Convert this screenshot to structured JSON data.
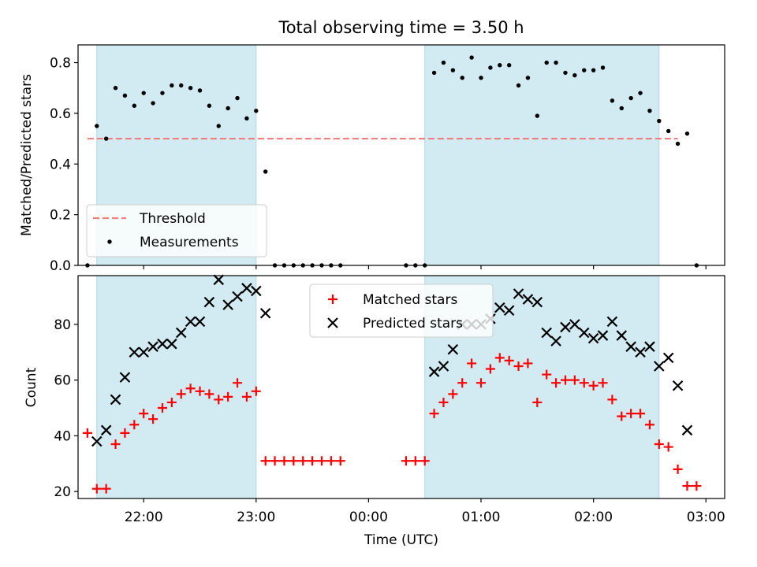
{
  "title": "Total observing time = 3.50 h",
  "colors": {
    "shade": "#add8e6",
    "threshold": "#f08080",
    "measurement": "#000000",
    "matched": "#ff0000",
    "predicted": "#000000"
  },
  "chart_data": [
    {
      "type": "scatter",
      "panel": "top",
      "ylabel": "Matched/Predicted stars",
      "xlabel": "",
      "ylim": [
        0,
        0.87
      ],
      "yticks": [
        "0.0",
        "0.2",
        "0.4",
        "0.6",
        "0.8"
      ],
      "grid": false,
      "legend_position": "lower left",
      "shaded_intervals": [
        [
          "21:35",
          "23:00"
        ],
        [
          "00:30",
          "02:35"
        ]
      ],
      "threshold": {
        "name": "Threshold",
        "value": 0.5,
        "x_start": "21:30",
        "x_end": "02:45"
      },
      "series": [
        {
          "name": "Measurements",
          "points": [
            [
              "21:30",
              0.0
            ],
            [
              "21:35",
              0.55
            ],
            [
              "21:40",
              0.5
            ],
            [
              "21:45",
              0.7
            ],
            [
              "21:50",
              0.67
            ],
            [
              "21:55",
              0.63
            ],
            [
              "22:00",
              0.68
            ],
            [
              "22:05",
              0.64
            ],
            [
              "22:10",
              0.68
            ],
            [
              "22:15",
              0.71
            ],
            [
              "22:20",
              0.71
            ],
            [
              "22:25",
              0.7
            ],
            [
              "22:30",
              0.69
            ],
            [
              "22:35",
              0.63
            ],
            [
              "22:40",
              0.55
            ],
            [
              "22:45",
              0.62
            ],
            [
              "22:50",
              0.66
            ],
            [
              "22:55",
              0.58
            ],
            [
              "23:00",
              0.61
            ],
            [
              "23:05",
              0.37
            ],
            [
              "23:10",
              0.0
            ],
            [
              "23:15",
              0.0
            ],
            [
              "23:20",
              0.0
            ],
            [
              "23:25",
              0.0
            ],
            [
              "23:30",
              0.0
            ],
            [
              "23:35",
              0.0
            ],
            [
              "23:40",
              0.0
            ],
            [
              "23:45",
              0.0
            ],
            [
              "00:20",
              0.0
            ],
            [
              "00:25",
              0.0
            ],
            [
              "00:30",
              0.0
            ],
            [
              "00:35",
              0.76
            ],
            [
              "00:40",
              0.8
            ],
            [
              "00:45",
              0.77
            ],
            [
              "00:50",
              0.74
            ],
            [
              "00:55",
              0.82
            ],
            [
              "01:00",
              0.74
            ],
            [
              "01:05",
              0.78
            ],
            [
              "01:10",
              0.79
            ],
            [
              "01:15",
              0.79
            ],
            [
              "01:20",
              0.71
            ],
            [
              "01:25",
              0.74
            ],
            [
              "01:30",
              0.59
            ],
            [
              "01:35",
              0.8
            ],
            [
              "01:40",
              0.8
            ],
            [
              "01:45",
              0.76
            ],
            [
              "01:50",
              0.75
            ],
            [
              "01:55",
              0.77
            ],
            [
              "02:00",
              0.77
            ],
            [
              "02:05",
              0.78
            ],
            [
              "02:10",
              0.65
            ],
            [
              "02:15",
              0.62
            ],
            [
              "02:20",
              0.66
            ],
            [
              "02:25",
              0.68
            ],
            [
              "02:30",
              0.61
            ],
            [
              "02:35",
              0.57
            ],
            [
              "02:40",
              0.53
            ],
            [
              "02:45",
              0.48
            ],
            [
              "02:50",
              0.52
            ],
            [
              "02:55",
              0.0
            ]
          ]
        }
      ]
    },
    {
      "type": "scatter",
      "panel": "bottom",
      "xlabel": "Time (UTC)",
      "ylabel": "Count",
      "ylim": [
        17.5,
        97.5
      ],
      "yticks": [
        "20",
        "40",
        "60",
        "80"
      ],
      "xlim": [
        "21:25",
        "03:10"
      ],
      "xticks": [
        "22:00",
        "23:00",
        "00:00",
        "01:00",
        "02:00",
        "03:00"
      ],
      "grid": false,
      "legend_position": "upper center",
      "shaded_intervals": [
        [
          "21:35",
          "23:00"
        ],
        [
          "00:30",
          "02:35"
        ]
      ],
      "series": [
        {
          "name": "Matched stars",
          "marker": "+",
          "points": [
            [
              "21:30",
              41
            ],
            [
              "21:35",
              21
            ],
            [
              "21:40",
              21
            ],
            [
              "21:45",
              37
            ],
            [
              "21:50",
              41
            ],
            [
              "21:55",
              44
            ],
            [
              "22:00",
              48
            ],
            [
              "22:05",
              46
            ],
            [
              "22:10",
              50
            ],
            [
              "22:15",
              52
            ],
            [
              "22:20",
              55
            ],
            [
              "22:25",
              57
            ],
            [
              "22:30",
              56
            ],
            [
              "22:35",
              55
            ],
            [
              "22:40",
              53
            ],
            [
              "22:45",
              54
            ],
            [
              "22:50",
              59
            ],
            [
              "22:55",
              54
            ],
            [
              "23:00",
              56
            ],
            [
              "23:05",
              31
            ],
            [
              "23:10",
              31
            ],
            [
              "23:15",
              31
            ],
            [
              "23:20",
              31
            ],
            [
              "23:25",
              31
            ],
            [
              "23:30",
              31
            ],
            [
              "23:35",
              31
            ],
            [
              "23:40",
              31
            ],
            [
              "23:45",
              31
            ],
            [
              "00:20",
              31
            ],
            [
              "00:25",
              31
            ],
            [
              "00:30",
              31
            ],
            [
              "00:35",
              48
            ],
            [
              "00:40",
              52
            ],
            [
              "00:45",
              55
            ],
            [
              "00:50",
              59
            ],
            [
              "00:55",
              66
            ],
            [
              "01:00",
              59
            ],
            [
              "01:05",
              64
            ],
            [
              "01:10",
              68
            ],
            [
              "01:15",
              67
            ],
            [
              "01:20",
              65
            ],
            [
              "01:25",
              66
            ],
            [
              "01:30",
              52
            ],
            [
              "01:35",
              62
            ],
            [
              "01:40",
              59
            ],
            [
              "01:45",
              60
            ],
            [
              "01:50",
              60
            ],
            [
              "01:55",
              59
            ],
            [
              "02:00",
              58
            ],
            [
              "02:05",
              59
            ],
            [
              "02:10",
              53
            ],
            [
              "02:15",
              47
            ],
            [
              "02:20",
              48
            ],
            [
              "02:25",
              48
            ],
            [
              "02:30",
              44
            ],
            [
              "02:35",
              37
            ],
            [
              "02:40",
              36
            ],
            [
              "02:45",
              28
            ],
            [
              "02:50",
              22
            ],
            [
              "02:55",
              22
            ]
          ]
        },
        {
          "name": "Predicted stars",
          "marker": "x",
          "points": [
            [
              "21:35",
              38
            ],
            [
              "21:40",
              42
            ],
            [
              "21:45",
              53
            ],
            [
              "21:50",
              61
            ],
            [
              "21:55",
              70
            ],
            [
              "22:00",
              70
            ],
            [
              "22:05",
              72
            ],
            [
              "22:10",
              73
            ],
            [
              "22:15",
              73
            ],
            [
              "22:20",
              77
            ],
            [
              "22:25",
              81
            ],
            [
              "22:30",
              81
            ],
            [
              "22:35",
              88
            ],
            [
              "22:40",
              96
            ],
            [
              "22:45",
              87
            ],
            [
              "22:50",
              90
            ],
            [
              "22:55",
              93
            ],
            [
              "23:00",
              92
            ],
            [
              "23:05",
              84
            ],
            [
              "00:35",
              63
            ],
            [
              "00:40",
              65
            ],
            [
              "00:45",
              71
            ],
            [
              "00:50",
              80
            ],
            [
              "00:55",
              80
            ],
            [
              "01:00",
              80
            ],
            [
              "01:05",
              82
            ],
            [
              "01:10",
              86
            ],
            [
              "01:15",
              85
            ],
            [
              "01:20",
              91
            ],
            [
              "01:25",
              89
            ],
            [
              "01:30",
              88
            ],
            [
              "01:35",
              77
            ],
            [
              "01:40",
              74
            ],
            [
              "01:45",
              79
            ],
            [
              "01:50",
              80
            ],
            [
              "01:55",
              77
            ],
            [
              "02:00",
              75
            ],
            [
              "02:05",
              76
            ],
            [
              "02:10",
              81
            ],
            [
              "02:15",
              76
            ],
            [
              "02:20",
              72
            ],
            [
              "02:25",
              70
            ],
            [
              "02:30",
              72
            ],
            [
              "02:35",
              65
            ],
            [
              "02:40",
              68
            ],
            [
              "02:45",
              58
            ],
            [
              "02:50",
              42
            ]
          ]
        }
      ]
    }
  ]
}
